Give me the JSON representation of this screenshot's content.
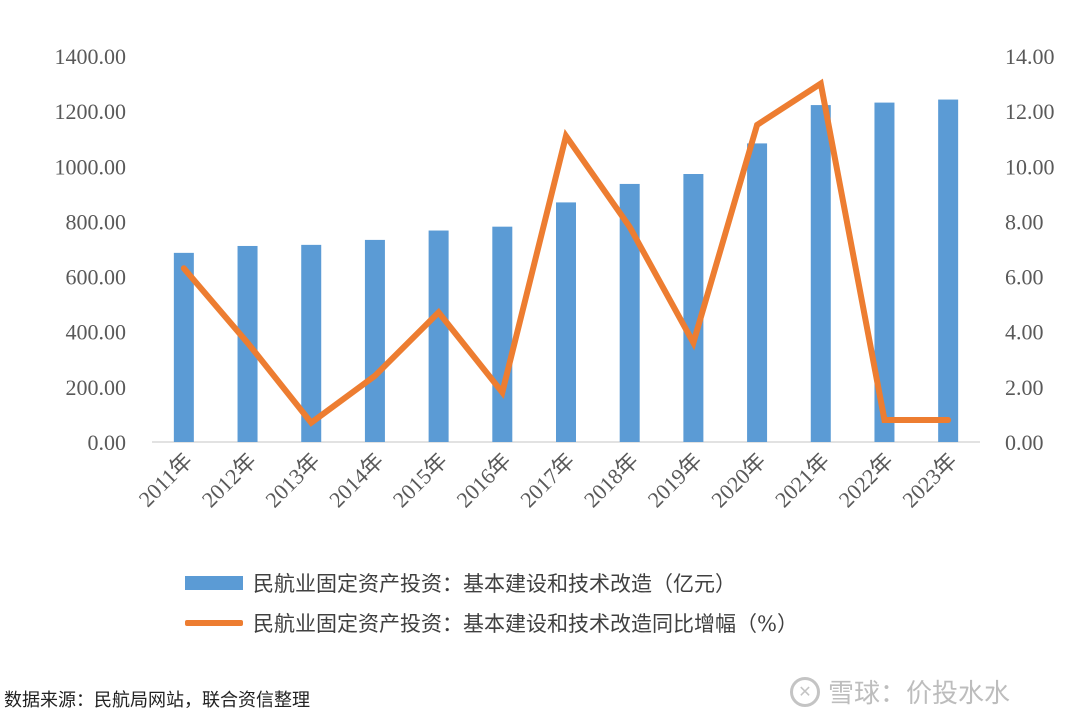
{
  "chart_data": {
    "type": "bar+line",
    "categories": [
      "2011年",
      "2012年",
      "2013年",
      "2014年",
      "2015年",
      "2016年",
      "2017年",
      "2018年",
      "2019年",
      "2020年",
      "2021年",
      "2022年",
      "2023年"
    ],
    "series": [
      {
        "name": "民航业固定资产投资：基本建设和技术改造（亿元）",
        "type": "bar",
        "axis": "left",
        "color": "#5b9bd5",
        "values": [
          686,
          711,
          715,
          733,
          767,
          781,
          869,
          936,
          972,
          1083,
          1222,
          1231,
          1242
        ]
      },
      {
        "name": "民航业固定资产投资：基本建设和技术改造同比增幅（%）",
        "type": "line",
        "axis": "right",
        "color": "#ed7d31",
        "values": [
          6.3,
          3.6,
          0.7,
          2.4,
          4.7,
          1.8,
          11.1,
          7.8,
          3.6,
          11.5,
          13.0,
          0.8,
          0.8
        ]
      }
    ],
    "y_left": {
      "min": 0,
      "max": 1400,
      "ticks": [
        "0.00",
        "200.00",
        "400.00",
        "600.00",
        "800.00",
        "1000.00",
        "1200.00",
        "1400.00"
      ]
    },
    "y_right": {
      "min": 0,
      "max": 14,
      "ticks": [
        "0.00",
        "2.00",
        "4.00",
        "6.00",
        "8.00",
        "10.00",
        "12.00",
        "14.00"
      ]
    },
    "grid": false,
    "legend_position": "bottom"
  },
  "source": "数据来源：民航局网站，联合资信整理",
  "watermark": "雪球：价投水水"
}
